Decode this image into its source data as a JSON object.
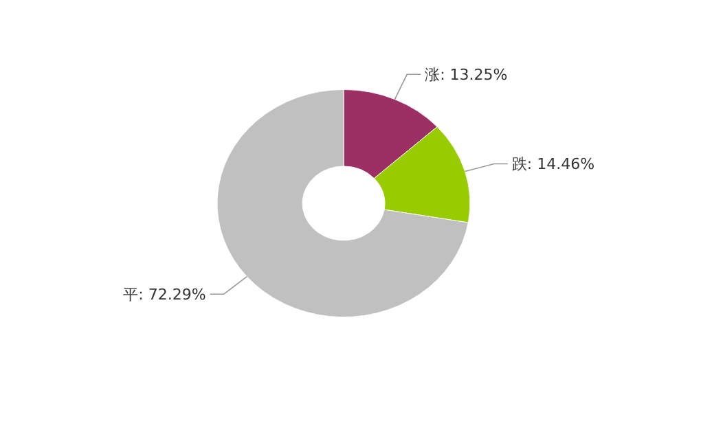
{
  "chart_data": {
    "type": "donut",
    "categories": [
      "涨",
      "跌",
      "平"
    ],
    "values": [
      13.25,
      14.46,
      72.29
    ],
    "value_labels": [
      "13.25%",
      "14.46%",
      "72.29%"
    ],
    "colors": [
      "#9c2f63",
      "#99cc00",
      "#c0c0c0"
    ]
  }
}
